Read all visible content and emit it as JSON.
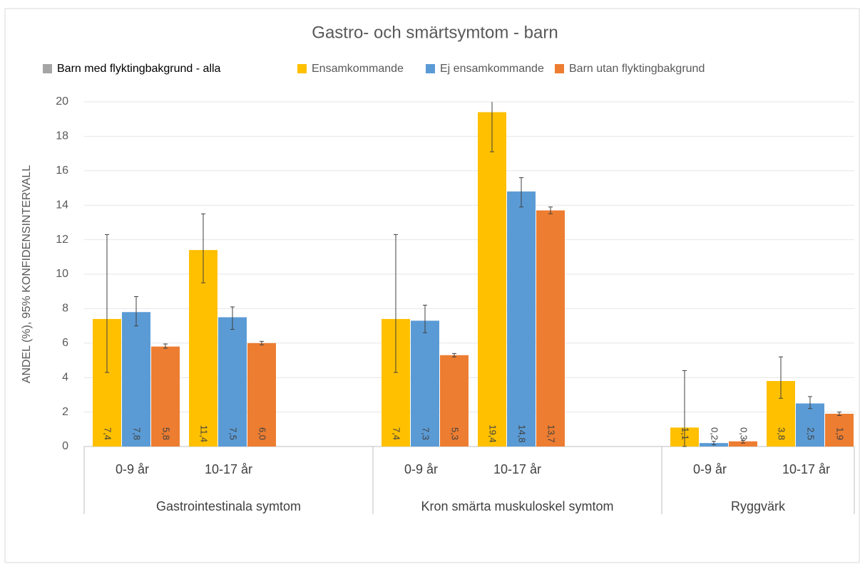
{
  "chart_data": {
    "type": "bar",
    "title": "Gastro- och smärtsymtom - barn",
    "y_label": "ANDEL (%), 95% KONFIDENSINTERVALL",
    "groups": [
      {
        "name": "Gastrointestinala symtom",
        "categories": [
          "0-9 år",
          "10-17 år",
          null
        ]
      },
      {
        "name": "Kron smärta muskuloskel symtom",
        "categories": [
          "0-9 år",
          "10-17 år",
          null
        ]
      },
      {
        "name": "Ryggvärk",
        "categories": [
          "0-9 år",
          "10-17 år"
        ]
      }
    ],
    "series": [
      {
        "name": "Barn med flyktingbakgrund  - alla",
        "color": "#a5a5a5",
        "values": [
          null,
          null,
          null,
          null,
          null,
          null,
          null,
          null
        ]
      },
      {
        "name": "Ensamkommande",
        "color": "#ffc000",
        "values": [
          7.4,
          11.4,
          null,
          7.4,
          19.4,
          null,
          1.1,
          3.8
        ],
        "value_labels": [
          "7,4",
          "11,4",
          null,
          "7,4",
          "19,4",
          null,
          "1,1",
          "3,8"
        ],
        "ci_low": [
          4.3,
          9.5,
          null,
          4.3,
          17.1,
          null,
          0,
          2.8
        ],
        "ci_high": [
          12.3,
          13.5,
          null,
          12.3,
          21.7,
          null,
          4.4,
          5.2
        ]
      },
      {
        "name": "Ej ensamkommande",
        "color": "#5b9bd5",
        "values": [
          7.8,
          7.5,
          null,
          7.3,
          14.8,
          null,
          0.2,
          2.5
        ],
        "value_labels": [
          "7,8",
          "7,5",
          null,
          "7,3",
          "14,8",
          null,
          "0,2",
          "2,5"
        ],
        "ci_low": [
          7.0,
          6.8,
          null,
          6.6,
          13.9,
          null,
          0.1,
          2.2
        ],
        "ci_high": [
          8.7,
          8.1,
          null,
          8.2,
          15.6,
          null,
          0.3,
          2.9
        ]
      },
      {
        "name": "Barn utan flyktingbakgrund",
        "color": "#ed7d31",
        "values": [
          5.8,
          6.0,
          null,
          5.3,
          13.7,
          null,
          0.3,
          1.9
        ],
        "value_labels": [
          "5,8",
          "6,0",
          null,
          "5,3",
          "13,7",
          null,
          "0,3",
          "1,9"
        ],
        "ci_low": [
          5.7,
          5.9,
          null,
          5.2,
          13.5,
          null,
          0.2,
          1.8
        ],
        "ci_high": [
          5.95,
          6.1,
          null,
          5.4,
          13.9,
          null,
          0.35,
          2.0
        ]
      }
    ],
    "ylim": [
      0,
      20
    ],
    "yticks": [
      0,
      2,
      4,
      6,
      8,
      10,
      12,
      14,
      16,
      18,
      20
    ],
    "grid": true,
    "legend": "top"
  }
}
